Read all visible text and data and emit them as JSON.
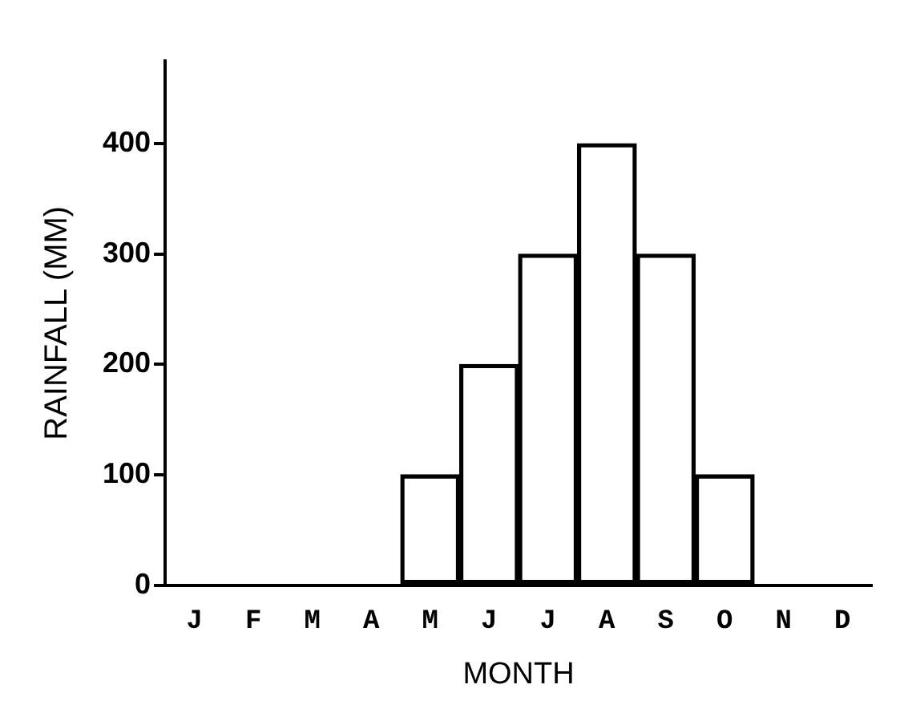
{
  "chart_data": {
    "type": "bar",
    "xlabel": "MONTH",
    "ylabel": "RAINFALL (MM)",
    "categories": [
      "J",
      "F",
      "M",
      "A",
      "M",
      "J",
      "J",
      "A",
      "S",
      "O",
      "N",
      "D"
    ],
    "values": [
      0,
      0,
      0,
      0,
      100,
      200,
      300,
      400,
      300,
      100,
      0,
      0
    ],
    "color": "#000000",
    "ylim": [
      0,
      475
    ],
    "yticks": [
      0,
      100,
      200,
      300,
      400
    ],
    "grid": false,
    "legend": false
  }
}
